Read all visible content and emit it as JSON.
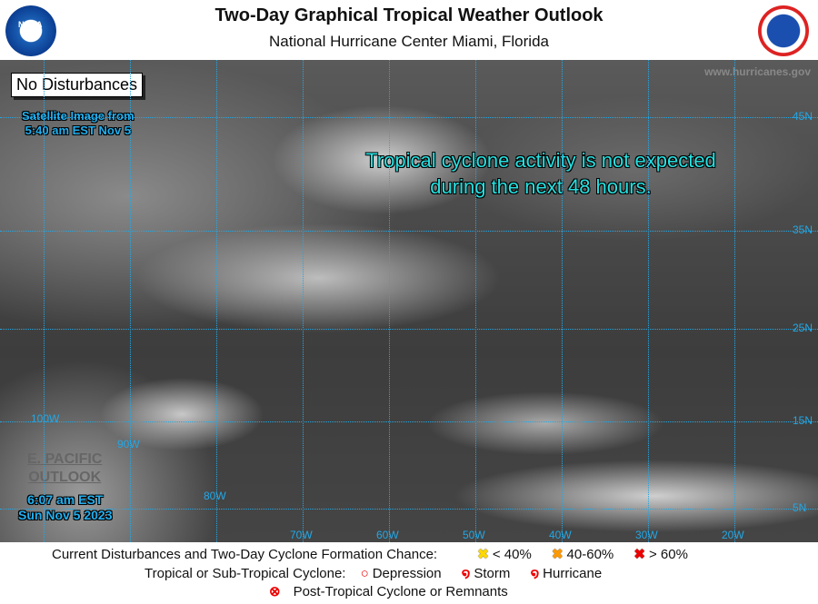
{
  "header": {
    "title": "Two-Day Graphical Tropical Weather Outlook",
    "subtitle": "National Hurricane Center  Miami, Florida",
    "left_logo": "NOAA",
    "right_logo": "NATIONAL WEATHER SERVICE"
  },
  "map": {
    "status_box": "No Disturbances",
    "image_time_line1": "Satellite Image from",
    "image_time_line2": "5:40 am EST Nov 5",
    "message_line1": "Tropical cyclone activity is not expected",
    "message_line2": "during the next 48 hours.",
    "watermark": "www.hurricanes.gov",
    "epac_line1": "E. PACIFIC",
    "epac_line2": "OUTLOOK",
    "issue_time_line1": "6:07 am EST",
    "issue_time_line2": "Sun Nov 5 2023",
    "lon_labels": [
      "100W",
      "90W",
      "80W",
      "70W",
      "60W",
      "50W",
      "40W",
      "30W",
      "20W"
    ],
    "lat_labels": [
      "45N",
      "35N",
      "25N",
      "15N",
      "5N"
    ],
    "grid_color": "#22a8e6"
  },
  "legend": {
    "row1_label": "Current Disturbances and Two-Day Cyclone Formation Chance:",
    "low": "< 40%",
    "medium": "40-60%",
    "high": "> 60%",
    "low_color": "#ffff00",
    "medium_color": "#ff9900",
    "high_color": "#ff0000",
    "row2_label": "Tropical or Sub-Tropical Cyclone:",
    "depression": "Depression",
    "storm": "Storm",
    "hurricane": "Hurricane",
    "row3_label": "Post-Tropical Cyclone or Remnants"
  }
}
